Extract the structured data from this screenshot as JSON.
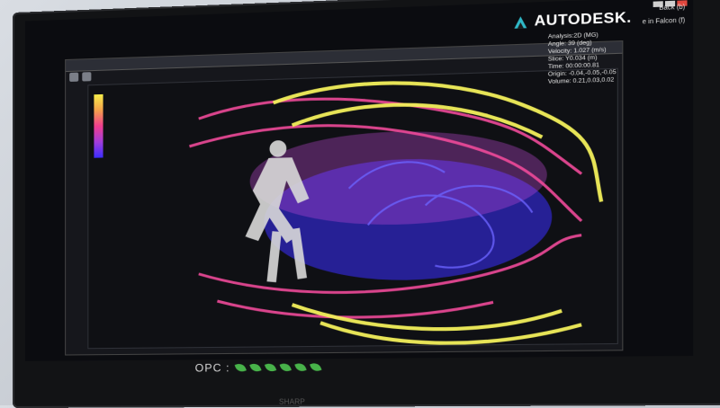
{
  "logo": {
    "text": "AUTODESK."
  },
  "menu": {
    "back_label": "Back (b)",
    "falcon_label": "e in Falcon (f)"
  },
  "stats": {
    "analysis": "Analysis:2D (MG)",
    "angle": "Angle:     39 (deg)",
    "velocity": "Velocity: 1.027 (m/s)",
    "slice": "Slice:      Y0.034 (m)",
    "time": "Time:      00:00:00.81",
    "origin": "Origin:   -0.04,-0.05,-0.05",
    "volume": "Volume:   0.21,0.03,0.02"
  },
  "bezel": {
    "opc_label": "OPC :",
    "brand": "SHARP"
  },
  "colors": {
    "streamline_yellow": "#f3f05b",
    "streamline_orange": "#f0a24a",
    "streamline_pink": "#ef4a9a",
    "streamline_magenta": "#c24bd8",
    "streamline_blue": "#3b2dff",
    "eco_leaf_green": "#48b34a"
  }
}
